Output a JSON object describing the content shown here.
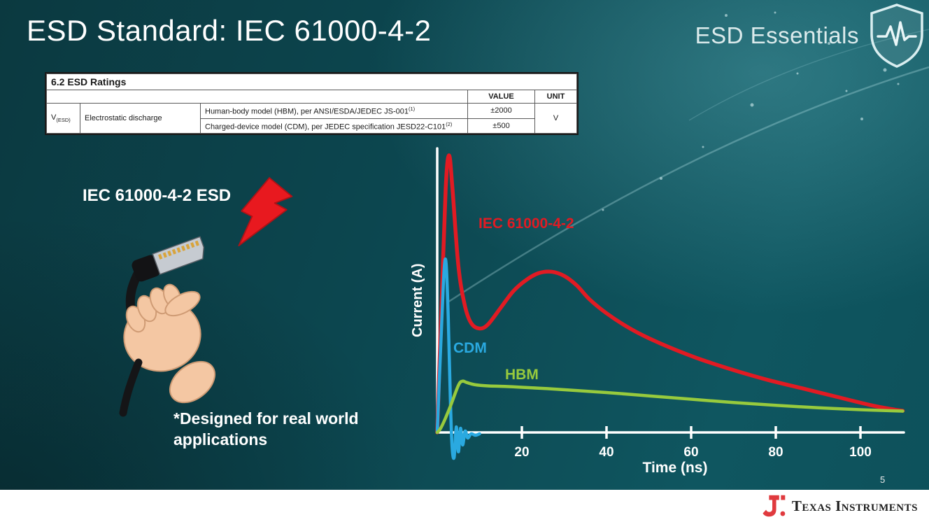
{
  "slide": {
    "title": "ESD Standard: IEC 61000-4-2",
    "badge": "ESD Essentials",
    "illustration_label": "IEC 61000-4-2 ESD",
    "footnote": "*Designed for real world\napplications",
    "page_number": "5"
  },
  "table": {
    "section_title": "6.2  ESD Ratings",
    "headers": {
      "value": "VALUE",
      "unit": "UNIT"
    },
    "param_symbol": "V",
    "param_symbol_sub": "(ESD)",
    "param_name": "Electrostatic discharge",
    "rows": [
      {
        "condition": "Human-body model (HBM), per ANSI/ESDA/JEDEC JS-001",
        "condition_sup": "(1)",
        "value": "±2000"
      },
      {
        "condition": "Charged-device model (CDM), per JEDEC specification JESD22-C101",
        "condition_sup": "(2)",
        "value": "±500"
      }
    ],
    "unit": "V"
  },
  "chart_data": {
    "type": "line",
    "title": "",
    "xlabel": "Time (ns)",
    "ylabel": "Current (A)",
    "xticks": [
      20,
      40,
      60,
      80,
      100
    ],
    "xlim": [
      0,
      112
    ],
    "ylim": [
      -0.1,
      1.05
    ],
    "grid": false,
    "legend_position": "inline-labels",
    "series": [
      {
        "name": "IEC 61000-4-2",
        "color": "#e11b23",
        "x": [
          0,
          1,
          2,
          2.8,
          3.6,
          5,
          6.5,
          8,
          10,
          12,
          15,
          18,
          21,
          24,
          27,
          30,
          33,
          36,
          40,
          45,
          50,
          56,
          62,
          70,
          78,
          86,
          94,
          102,
          107,
          110
        ],
        "y": [
          0,
          0.45,
          0.88,
          1.0,
          0.88,
          0.6,
          0.46,
          0.395,
          0.375,
          0.39,
          0.45,
          0.51,
          0.55,
          0.575,
          0.58,
          0.565,
          0.53,
          0.48,
          0.43,
          0.38,
          0.34,
          0.3,
          0.265,
          0.225,
          0.19,
          0.16,
          0.13,
          0.1,
          0.085,
          0.078
        ]
      },
      {
        "name": "CDM",
        "color": "#2aa9e0",
        "x": [
          0,
          0.8,
          1.6,
          2.1,
          2.6,
          3.1,
          3.5,
          4,
          4.5,
          5,
          5.5,
          6,
          6.6,
          7.2,
          8,
          9,
          10
        ],
        "y": [
          0,
          0.3,
          0.58,
          0.61,
          0.42,
          0.12,
          -0.05,
          -0.09,
          0.02,
          -0.07,
          0.015,
          -0.045,
          0.005,
          -0.02,
          -0.005,
          -0.01,
          -0.005
        ]
      },
      {
        "name": "HBM",
        "color": "#97ca3d",
        "x": [
          0,
          1,
          3,
          5,
          6,
          7,
          9,
          12,
          16,
          20,
          26,
          32,
          40,
          50,
          60,
          70,
          80,
          90,
          100,
          106,
          110
        ],
        "y": [
          0,
          0.02,
          0.09,
          0.17,
          0.185,
          0.18,
          0.172,
          0.168,
          0.166,
          0.163,
          0.158,
          0.152,
          0.144,
          0.132,
          0.12,
          0.108,
          0.098,
          0.089,
          0.082,
          0.079,
          0.077
        ]
      }
    ]
  },
  "footer": {
    "brand": "Texas Instruments",
    "brand_color": "#e03a3e"
  }
}
